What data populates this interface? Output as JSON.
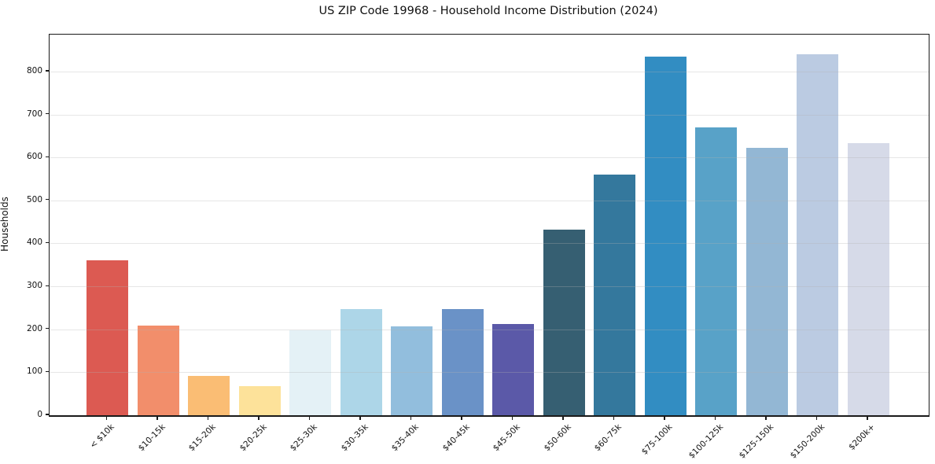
{
  "chart_data": {
    "type": "bar",
    "title": "US ZIP Code 19968 - Household Income Distribution (2024)",
    "xlabel": "",
    "ylabel": "Households",
    "categories": [
      "< $10k",
      "$10-15k",
      "$15-20k",
      "$20-25k",
      "$25-30k",
      "$30-35k",
      "$35-40k",
      "$40-45k",
      "$45-50k",
      "$50-60k",
      "$60-75k",
      "$75-100k",
      "$100-125k",
      "$125-150k",
      "$150-200k",
      "$200k+"
    ],
    "values": [
      360,
      209,
      92,
      67,
      198,
      247,
      206,
      247,
      213,
      432,
      561,
      834,
      670,
      622,
      841,
      634
    ],
    "bar_colors": [
      "#dc5a52",
      "#f28e6b",
      "#fabd74",
      "#fde29a",
      "#e4f1f6",
      "#add6e8",
      "#92bedd",
      "#6a92c7",
      "#5b59a8",
      "#365f72",
      "#34789d",
      "#328dc2",
      "#58a2c8",
      "#93b7d4",
      "#bbcbe2",
      "#d6dae8"
    ],
    "yticks": [
      0,
      100,
      200,
      300,
      400,
      500,
      600,
      700,
      800
    ],
    "ylim": [
      0,
      886
    ],
    "grid": "horizontal-above-bars",
    "legend": "none",
    "colors": {
      "spine": "#1a1a1a",
      "gridline": "#b0b0b0",
      "background": "#ffffff",
      "text": "#111111"
    }
  }
}
